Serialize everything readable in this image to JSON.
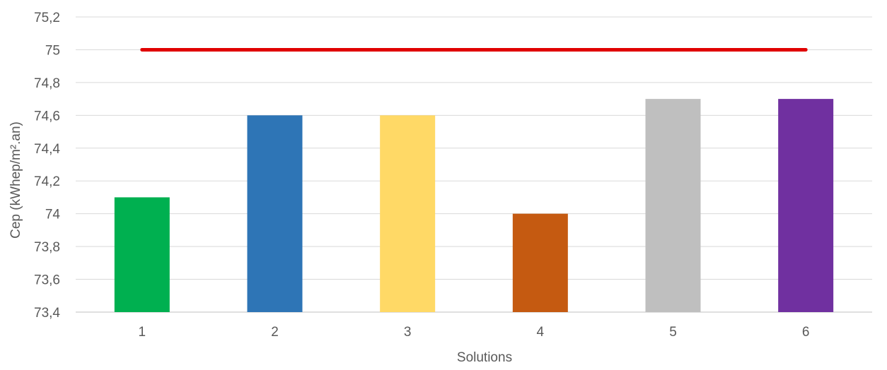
{
  "chart_data": {
    "type": "bar",
    "categories": [
      "1",
      "2",
      "3",
      "4",
      "5",
      "6"
    ],
    "values": [
      74.1,
      74.6,
      74.6,
      74.0,
      74.7,
      74.7
    ],
    "colors": [
      "#00B050",
      "#2E75B6",
      "#FFD966",
      "#C55A11",
      "#BFBFBF",
      "#7030A0"
    ],
    "reference_line": {
      "value": 75,
      "color": "#E00000"
    },
    "xlabel": "Solutions",
    "ylabel": "Cep (kWhep/m².an)",
    "ylim": [
      73.4,
      75.2
    ],
    "yticks": [
      "73,4",
      "73,6",
      "73,8",
      "74",
      "74,2",
      "74,4",
      "74,6",
      "74,8",
      "75",
      "75,2"
    ],
    "grid": true
  }
}
